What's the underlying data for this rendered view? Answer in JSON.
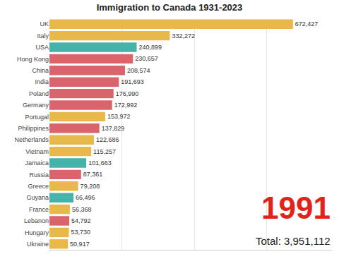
{
  "chart_data": {
    "type": "bar",
    "title": "Immigration to Canada 1931-2023",
    "orientation": "horizontal",
    "categories": [
      "UK",
      "Italy",
      "USA",
      "Hong Kong",
      "China",
      "India",
      "Poland",
      "Germany",
      "Portugal",
      "Philippines",
      "Netherlands",
      "Vietnam",
      "Jamaica",
      "Russia",
      "Greece",
      "Guyana",
      "France",
      "Lebanon",
      "Hungary",
      "Ukraine"
    ],
    "values": [
      672427,
      332272,
      240899,
      230657,
      208574,
      191693,
      176990,
      172992,
      153972,
      137829,
      122686,
      115257,
      101663,
      87361,
      79208,
      66496,
      56368,
      54792,
      53730,
      50917
    ],
    "value_labels": [
      "672,427",
      "332,272",
      "240,899",
      "230,657",
      "208,574",
      "191,693",
      "176,990",
      "172,992",
      "153,972",
      "137,829",
      "122,686",
      "115,257",
      "101,663",
      "87,361",
      "79,208",
      "66,496",
      "56,368",
      "54,792",
      "53,730",
      "50,917"
    ],
    "colors": [
      "#e8b84b",
      "#e8b84b",
      "#45b3a9",
      "#d9646b",
      "#d9646b",
      "#d9646b",
      "#d9646b",
      "#d9646b",
      "#e8b84b",
      "#d9646b",
      "#e8b84b",
      "#e8b84b",
      "#45b3a9",
      "#d9646b",
      "#e8b84b",
      "#45b3a9",
      "#e8b84b",
      "#d9646b",
      "#e8b84b",
      "#e8b84b"
    ],
    "xlim": [
      0,
      780000
    ],
    "xticks": [
      0,
      200000,
      400000,
      600000
    ],
    "grid": true,
    "tick_labels": "y",
    "data_labels": true,
    "annotations": [
      "1991",
      "Total: 3,951,112"
    ]
  }
}
